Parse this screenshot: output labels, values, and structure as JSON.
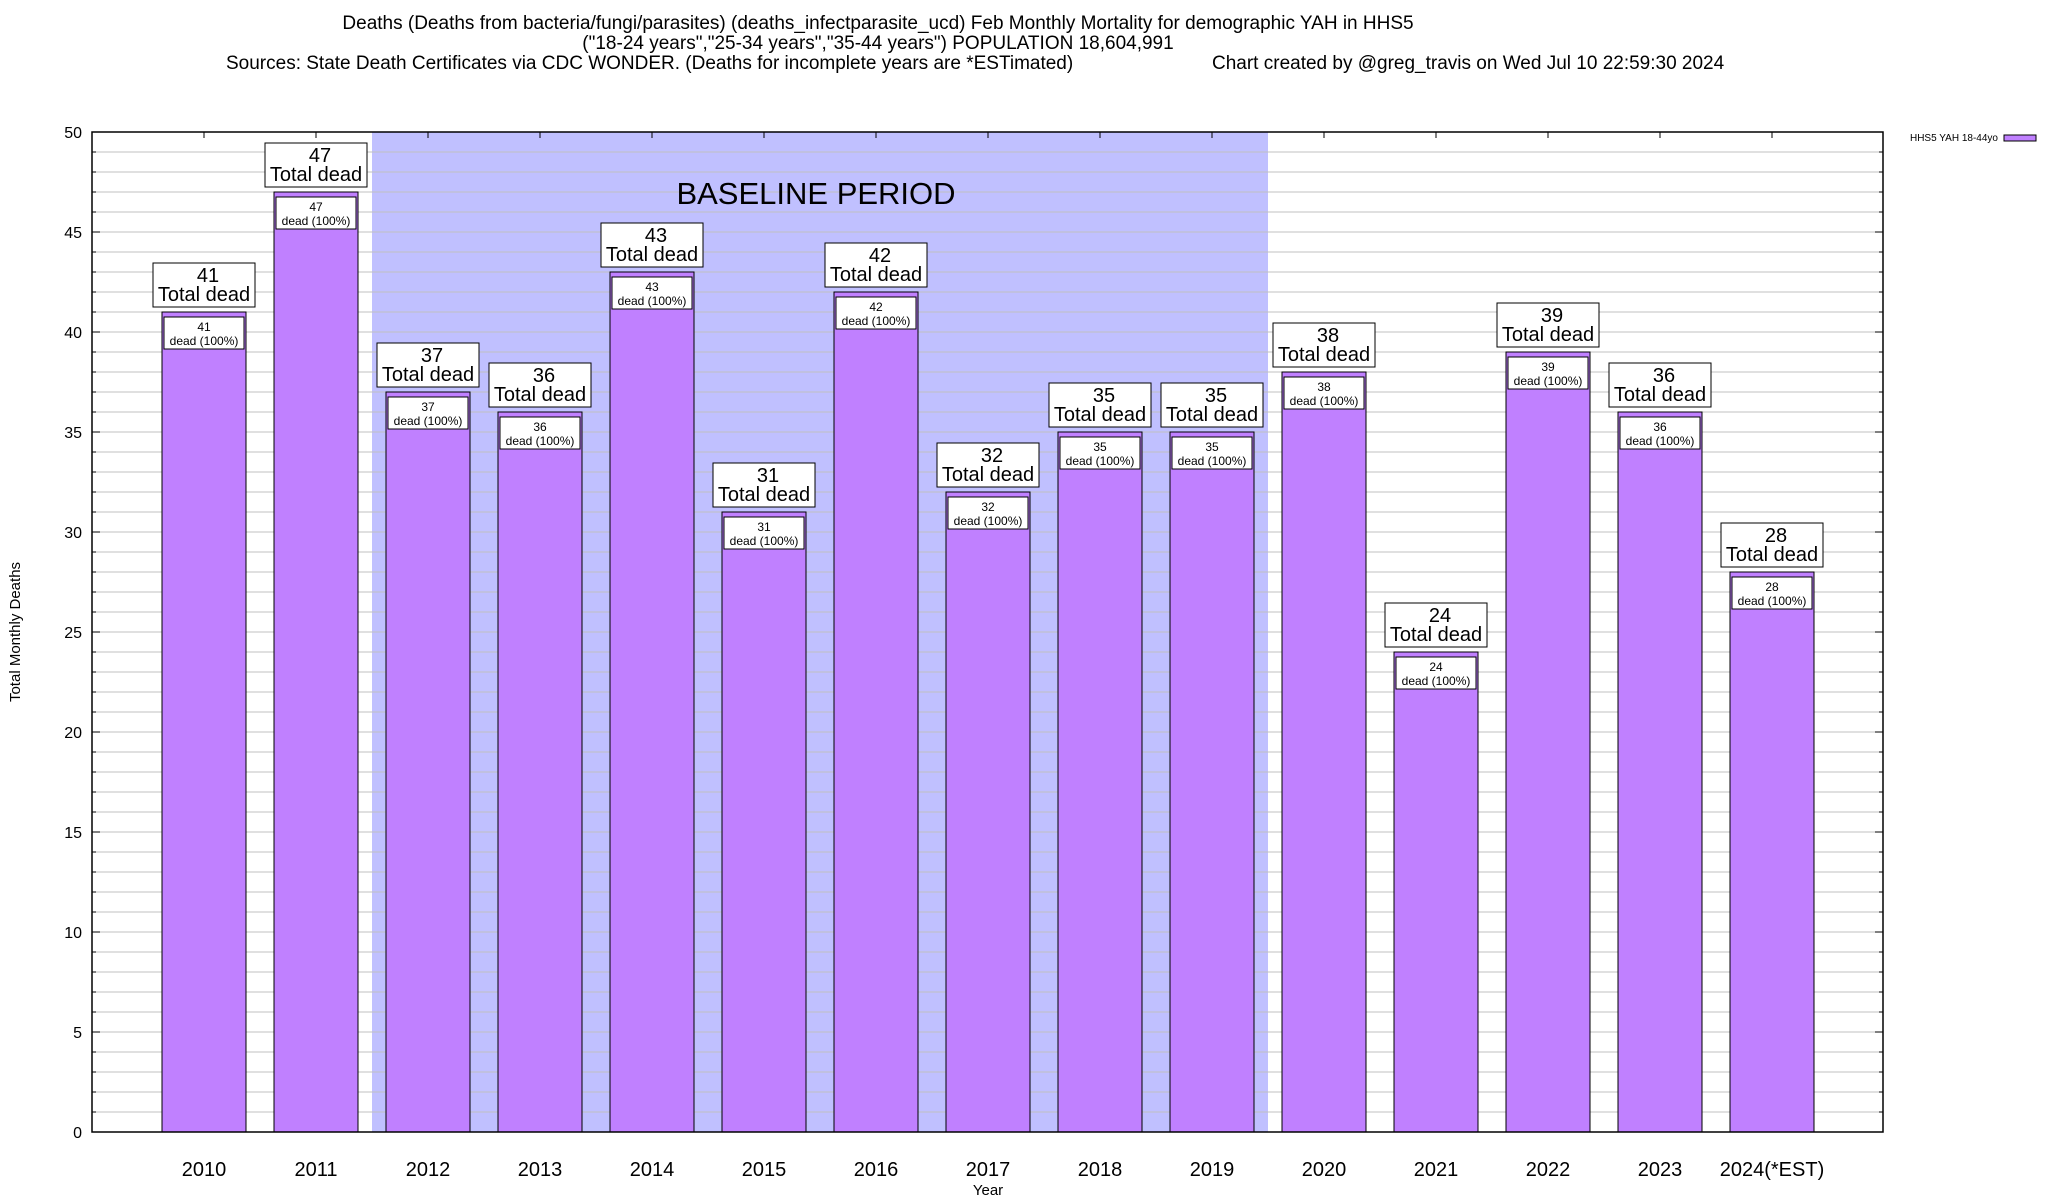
{
  "titles": {
    "line1": "Deaths (Deaths from bacteria/fungi/parasites) (deaths_infectparasite_ucd) Feb Monthly Mortality for demographic YAH in HHS5",
    "line2": "(\"18-24 years\",\"25-34 years\",\"35-44 years\") POPULATION 18,604,991",
    "line3": "Sources: State Death Certificates via CDC WONDER. (Deaths for incomplete years are *ESTimated)",
    "line4": "Chart created by @greg_travis on Wed Jul 10 22:59:30 2024"
  },
  "colors": {
    "bar": "#c080ff",
    "baseline_band": "#c0c0ff",
    "grid": "#c0c0c0"
  },
  "chart_data": {
    "type": "bar",
    "xlabel": "Year",
    "ylabel": "Total Monthly Deaths",
    "ylim": [
      0,
      50
    ],
    "yticks": [
      0,
      5,
      10,
      15,
      20,
      25,
      30,
      35,
      40,
      45,
      50
    ],
    "grid": true,
    "legend": {
      "position": "top-right",
      "entries": [
        "HHS5 YAH 18-44yo"
      ]
    },
    "categories": [
      "2010",
      "2011",
      "2012",
      "2013",
      "2014",
      "2015",
      "2016",
      "2017",
      "2018",
      "2019",
      "2020",
      "2021",
      "2022",
      "2023",
      "2024(*EST)"
    ],
    "series": [
      {
        "name": "HHS5 YAH 18-44yo",
        "values": [
          41,
          47,
          37,
          36,
          43,
          31,
          42,
          32,
          35,
          35,
          38,
          24,
          39,
          36,
          28
        ]
      }
    ],
    "total_label": "Total dead",
    "inner_label": "dead (100%)",
    "annotation": {
      "text": "BASELINE PERIOD",
      "from": "2012",
      "to": "2019"
    }
  }
}
